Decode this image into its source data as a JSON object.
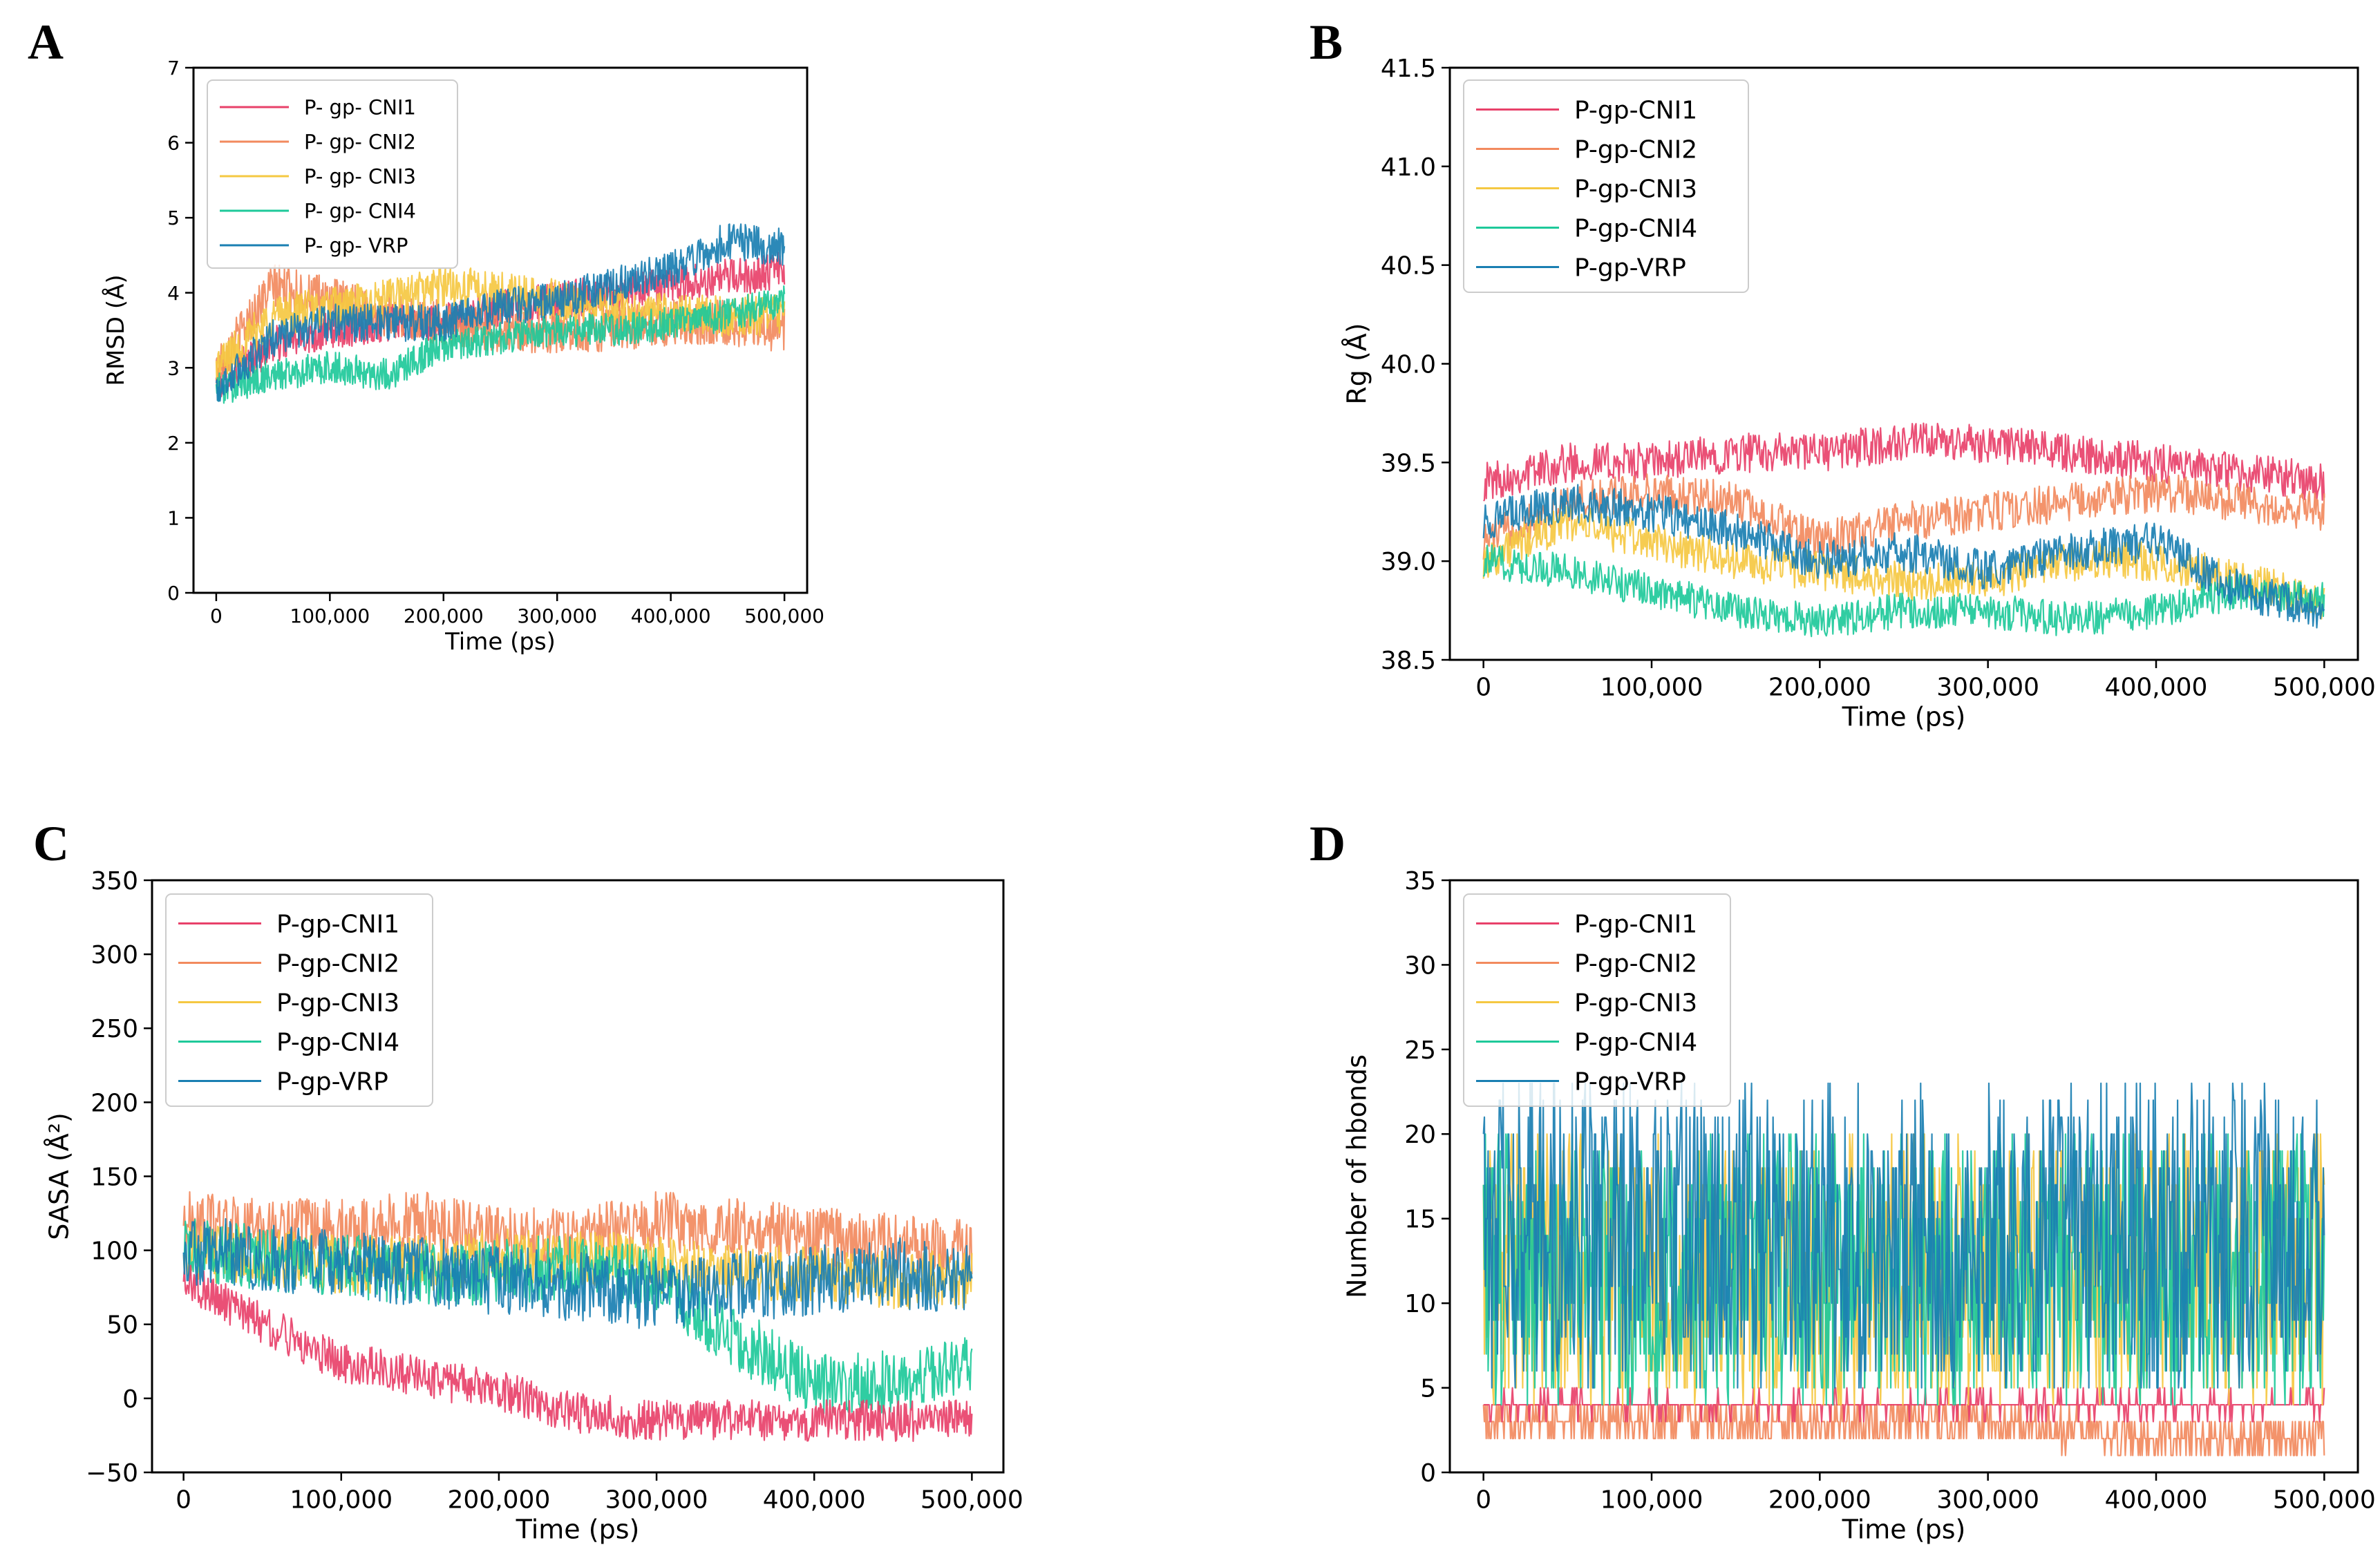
{
  "chart_data": [
    {
      "id": "A",
      "type": "line",
      "panel_label": "A",
      "xlabel": "Time (ps)",
      "ylabel": "RMSD (Å)",
      "xlim": [
        -20000,
        520000
      ],
      "ylim": [
        0,
        7
      ],
      "xticks": [
        0,
        100000,
        200000,
        300000,
        400000,
        500000
      ],
      "xtick_labels": [
        "0",
        "100,000",
        "200,000",
        "300,000",
        "400,000",
        "500,000"
      ],
      "yticks": [
        0,
        1,
        2,
        3,
        4,
        5,
        6,
        7
      ],
      "ytick_labels": [
        "0",
        "1",
        "2",
        "3",
        "4",
        "5",
        "6",
        "7"
      ],
      "legend": {
        "position": "top-left",
        "labels": [
          "P- gp- CNI1",
          "P- gp- CNI2",
          "P- gp- CNI3",
          "P- gp- CNI4",
          "P- gp- VRP"
        ]
      },
      "series": [
        {
          "name": "P- gp- CNI1",
          "color": "#e8416a",
          "x": [
            0,
            50000,
            100000,
            150000,
            200000,
            250000,
            300000,
            350000,
            400000,
            450000,
            500000
          ],
          "y": [
            2.8,
            3.3,
            3.5,
            3.6,
            3.6,
            3.8,
            3.9,
            4.0,
            4.1,
            4.2,
            4.3
          ],
          "noise": 0.25
        },
        {
          "name": "P- gp- CNI2",
          "color": "#f28a5e",
          "x": [
            0,
            50000,
            100000,
            150000,
            200000,
            250000,
            300000,
            350000,
            400000,
            450000,
            500000
          ],
          "y": [
            3.0,
            4.1,
            3.9,
            3.7,
            3.6,
            3.5,
            3.5,
            3.5,
            3.6,
            3.6,
            3.5
          ],
          "noise": 0.3
        },
        {
          "name": "P- gp- CNI3",
          "color": "#f5c842",
          "x": [
            0,
            50000,
            100000,
            150000,
            200000,
            250000,
            300000,
            350000,
            400000,
            450000,
            500000
          ],
          "y": [
            3.0,
            3.7,
            3.8,
            3.9,
            4.1,
            4.0,
            3.9,
            3.8,
            3.7,
            3.7,
            3.7
          ],
          "noise": 0.28
        },
        {
          "name": "P- gp- CNI4",
          "color": "#1ec99a",
          "x": [
            0,
            50000,
            100000,
            150000,
            200000,
            250000,
            300000,
            350000,
            400000,
            450000,
            500000
          ],
          "y": [
            2.7,
            2.9,
            3.0,
            2.9,
            3.3,
            3.4,
            3.5,
            3.5,
            3.6,
            3.7,
            3.9
          ],
          "noise": 0.22
        },
        {
          "name": "P- gp- VRP",
          "color": "#1a7fb2",
          "x": [
            0,
            50000,
            100000,
            150000,
            200000,
            250000,
            300000,
            350000,
            400000,
            450000,
            500000
          ],
          "y": [
            2.7,
            3.4,
            3.6,
            3.6,
            3.6,
            3.8,
            3.9,
            4.1,
            4.3,
            4.7,
            4.6
          ],
          "noise": 0.25
        }
      ]
    },
    {
      "id": "B",
      "type": "line",
      "panel_label": "B",
      "xlabel": "Time (ps)",
      "ylabel": "Rg (Å)",
      "xlim": [
        -20000,
        520000
      ],
      "ylim": [
        38.5,
        41.5
      ],
      "xticks": [
        0,
        100000,
        200000,
        300000,
        400000,
        500000
      ],
      "xtick_labels": [
        "0",
        "100,000",
        "200,000",
        "300,000",
        "400,000",
        "500,000"
      ],
      "yticks": [
        38.5,
        39.0,
        39.5,
        40.0,
        40.5,
        41.0,
        41.5
      ],
      "ytick_labels": [
        "38.5",
        "39.0",
        "39.5",
        "40.0",
        "40.5",
        "41.0",
        "41.5"
      ],
      "legend": {
        "position": "top-left",
        "labels": [
          "P-gp-CNI1",
          "P-gp-CNI2",
          "P-gp-CNI3",
          "P-gp-CNI4",
          "P-gp-VRP"
        ]
      },
      "series": [
        {
          "name": "P-gp-CNI1",
          "color": "#e8416a",
          "x": [
            0,
            50000,
            100000,
            150000,
            200000,
            250000,
            300000,
            350000,
            400000,
            450000,
            500000
          ],
          "y": [
            39.4,
            39.5,
            39.5,
            39.55,
            39.55,
            39.6,
            39.6,
            39.55,
            39.5,
            39.45,
            39.4
          ],
          "noise": 0.1
        },
        {
          "name": "P-gp-CNI2",
          "color": "#f28a5e",
          "x": [
            0,
            50000,
            100000,
            150000,
            200000,
            250000,
            300000,
            350000,
            400000,
            450000,
            500000
          ],
          "y": [
            39.1,
            39.3,
            39.35,
            39.3,
            39.1,
            39.2,
            39.25,
            39.3,
            39.35,
            39.3,
            39.25
          ],
          "noise": 0.1
        },
        {
          "name": "P-gp-CNI3",
          "color": "#f5c842",
          "x": [
            0,
            50000,
            100000,
            150000,
            200000,
            250000,
            300000,
            350000,
            400000,
            450000,
            500000
          ],
          "y": [
            39.0,
            39.2,
            39.1,
            39.0,
            38.95,
            38.9,
            38.9,
            39.0,
            39.0,
            38.9,
            38.8
          ],
          "noise": 0.1
        },
        {
          "name": "P-gp-CNI4",
          "color": "#1ec99a",
          "x": [
            0,
            50000,
            100000,
            150000,
            200000,
            250000,
            300000,
            350000,
            400000,
            450000,
            500000
          ],
          "y": [
            39.0,
            38.95,
            38.85,
            38.75,
            38.7,
            38.75,
            38.75,
            38.7,
            38.75,
            38.85,
            38.8
          ],
          "noise": 0.09
        },
        {
          "name": "P-gp-VRP",
          "color": "#1a7fb2",
          "x": [
            0,
            50000,
            100000,
            150000,
            200000,
            250000,
            300000,
            350000,
            400000,
            450000,
            500000
          ],
          "y": [
            39.2,
            39.3,
            39.25,
            39.15,
            39.0,
            39.05,
            38.95,
            39.05,
            39.1,
            38.85,
            38.75
          ],
          "noise": 0.1
        }
      ]
    },
    {
      "id": "C",
      "type": "line",
      "panel_label": "C",
      "xlabel": "Time (ps)",
      "ylabel": "SASA (Å²)",
      "xlim": [
        -20000,
        520000
      ],
      "ylim": [
        -50,
        350
      ],
      "xticks": [
        0,
        100000,
        200000,
        300000,
        400000,
        500000
      ],
      "xtick_labels": [
        "0",
        "100,000",
        "200,000",
        "300,000",
        "400,000",
        "500,000"
      ],
      "yticks": [
        -50,
        0,
        50,
        100,
        150,
        200,
        250,
        300,
        350
      ],
      "ytick_labels": [
        "−50",
        "0",
        "50",
        "100",
        "150",
        "200",
        "250",
        "300",
        "350"
      ],
      "legend": {
        "position": "top-left",
        "labels": [
          "P-gp-CNI1",
          "P-gp-CNI2",
          "P-gp-CNI3",
          "P-gp-CNI4",
          "P-gp-VRP"
        ]
      },
      "series": [
        {
          "name": "P-gp-CNI2",
          "color": "#f28a5e",
          "x": [
            0,
            50000,
            100000,
            150000,
            200000,
            250000,
            300000,
            350000,
            400000,
            450000,
            500000
          ],
          "y": [
            120,
            115,
            115,
            120,
            110,
            110,
            120,
            115,
            110,
            105,
            100
          ],
          "noise": 20
        },
        {
          "name": "P-gp-CNI3",
          "color": "#f5c842",
          "x": [
            0,
            50000,
            100000,
            150000,
            200000,
            250000,
            300000,
            350000,
            400000,
            450000,
            500000
          ],
          "y": [
            100,
            95,
            90,
            90,
            95,
            95,
            90,
            85,
            85,
            80,
            80
          ],
          "noise": 20
        },
        {
          "name": "P-gp-CNI4",
          "color": "#1ec99a",
          "x": [
            0,
            50000,
            100000,
            150000,
            200000,
            250000,
            300000,
            350000,
            400000,
            450000,
            500000
          ],
          "y": [
            100,
            95,
            90,
            85,
            85,
            90,
            80,
            40,
            10,
            10,
            20
          ],
          "noise": 22
        },
        {
          "name": "P-gp-CNI1",
          "color": "#e8416a",
          "x": [
            0,
            50000,
            100000,
            150000,
            200000,
            250000,
            300000,
            350000,
            400000,
            450000,
            500000
          ],
          "y": [
            80,
            50,
            25,
            15,
            5,
            -10,
            -15,
            -15,
            -15,
            -15,
            -15
          ],
          "noise": 14
        },
        {
          "name": "P-gp-VRP",
          "color": "#1a7fb2",
          "x": [
            0,
            50000,
            100000,
            150000,
            200000,
            250000,
            300000,
            350000,
            400000,
            450000,
            500000
          ],
          "y": [
            100,
            95,
            90,
            85,
            80,
            75,
            70,
            75,
            80,
            85,
            80
          ],
          "noise": 24
        }
      ]
    },
    {
      "id": "D",
      "type": "line",
      "panel_label": "D",
      "xlabel": "Time (ps)",
      "ylabel": "Number of hbonds",
      "xlim": [
        -20000,
        520000
      ],
      "ylim": [
        0,
        35
      ],
      "xticks": [
        0,
        100000,
        200000,
        300000,
        400000,
        500000
      ],
      "xtick_labels": [
        "0",
        "100,000",
        "200,000",
        "300,000",
        "400,000",
        "500,000"
      ],
      "yticks": [
        0,
        5,
        10,
        15,
        20,
        25,
        30,
        35
      ],
      "ytick_labels": [
        "0",
        "5",
        "10",
        "15",
        "20",
        "25",
        "30",
        "35"
      ],
      "legend": {
        "position": "top-left",
        "labels": [
          "P-gp-CNI1",
          "P-gp-CNI2",
          "P-gp-CNI3",
          "P-gp-CNI4",
          "P-gp-VRP"
        ]
      },
      "series": [
        {
          "name": "P-gp-CNI2",
          "color": "#f28a5e",
          "x": [
            0,
            100000,
            200000,
            300000,
            400000,
            500000
          ],
          "y": [
            3,
            3,
            3,
            3,
            2,
            2
          ],
          "noise": 1.2
        },
        {
          "name": "P-gp-CNI1",
          "color": "#e8416a",
          "x": [
            0,
            100000,
            200000,
            300000,
            400000,
            500000
          ],
          "y": [
            4,
            4,
            4,
            4,
            4,
            4
          ],
          "noise": 0.6
        },
        {
          "name": "P-gp-CNI3",
          "color": "#f5c842",
          "x": [
            0,
            100000,
            200000,
            300000,
            400000,
            500000
          ],
          "y": [
            12,
            12,
            12,
            12,
            12,
            12
          ],
          "noise": 8
        },
        {
          "name": "P-gp-CNI4",
          "color": "#1ec99a",
          "x": [
            0,
            100000,
            200000,
            300000,
            400000,
            500000
          ],
          "y": [
            12,
            12,
            12,
            12,
            12,
            12
          ],
          "noise": 8
        },
        {
          "name": "P-gp-VRP",
          "color": "#1a7fb2",
          "x": [
            0,
            100000,
            200000,
            300000,
            400000,
            500000
          ],
          "y": [
            14,
            14,
            14,
            14,
            14,
            14
          ],
          "noise": 9
        }
      ]
    }
  ]
}
